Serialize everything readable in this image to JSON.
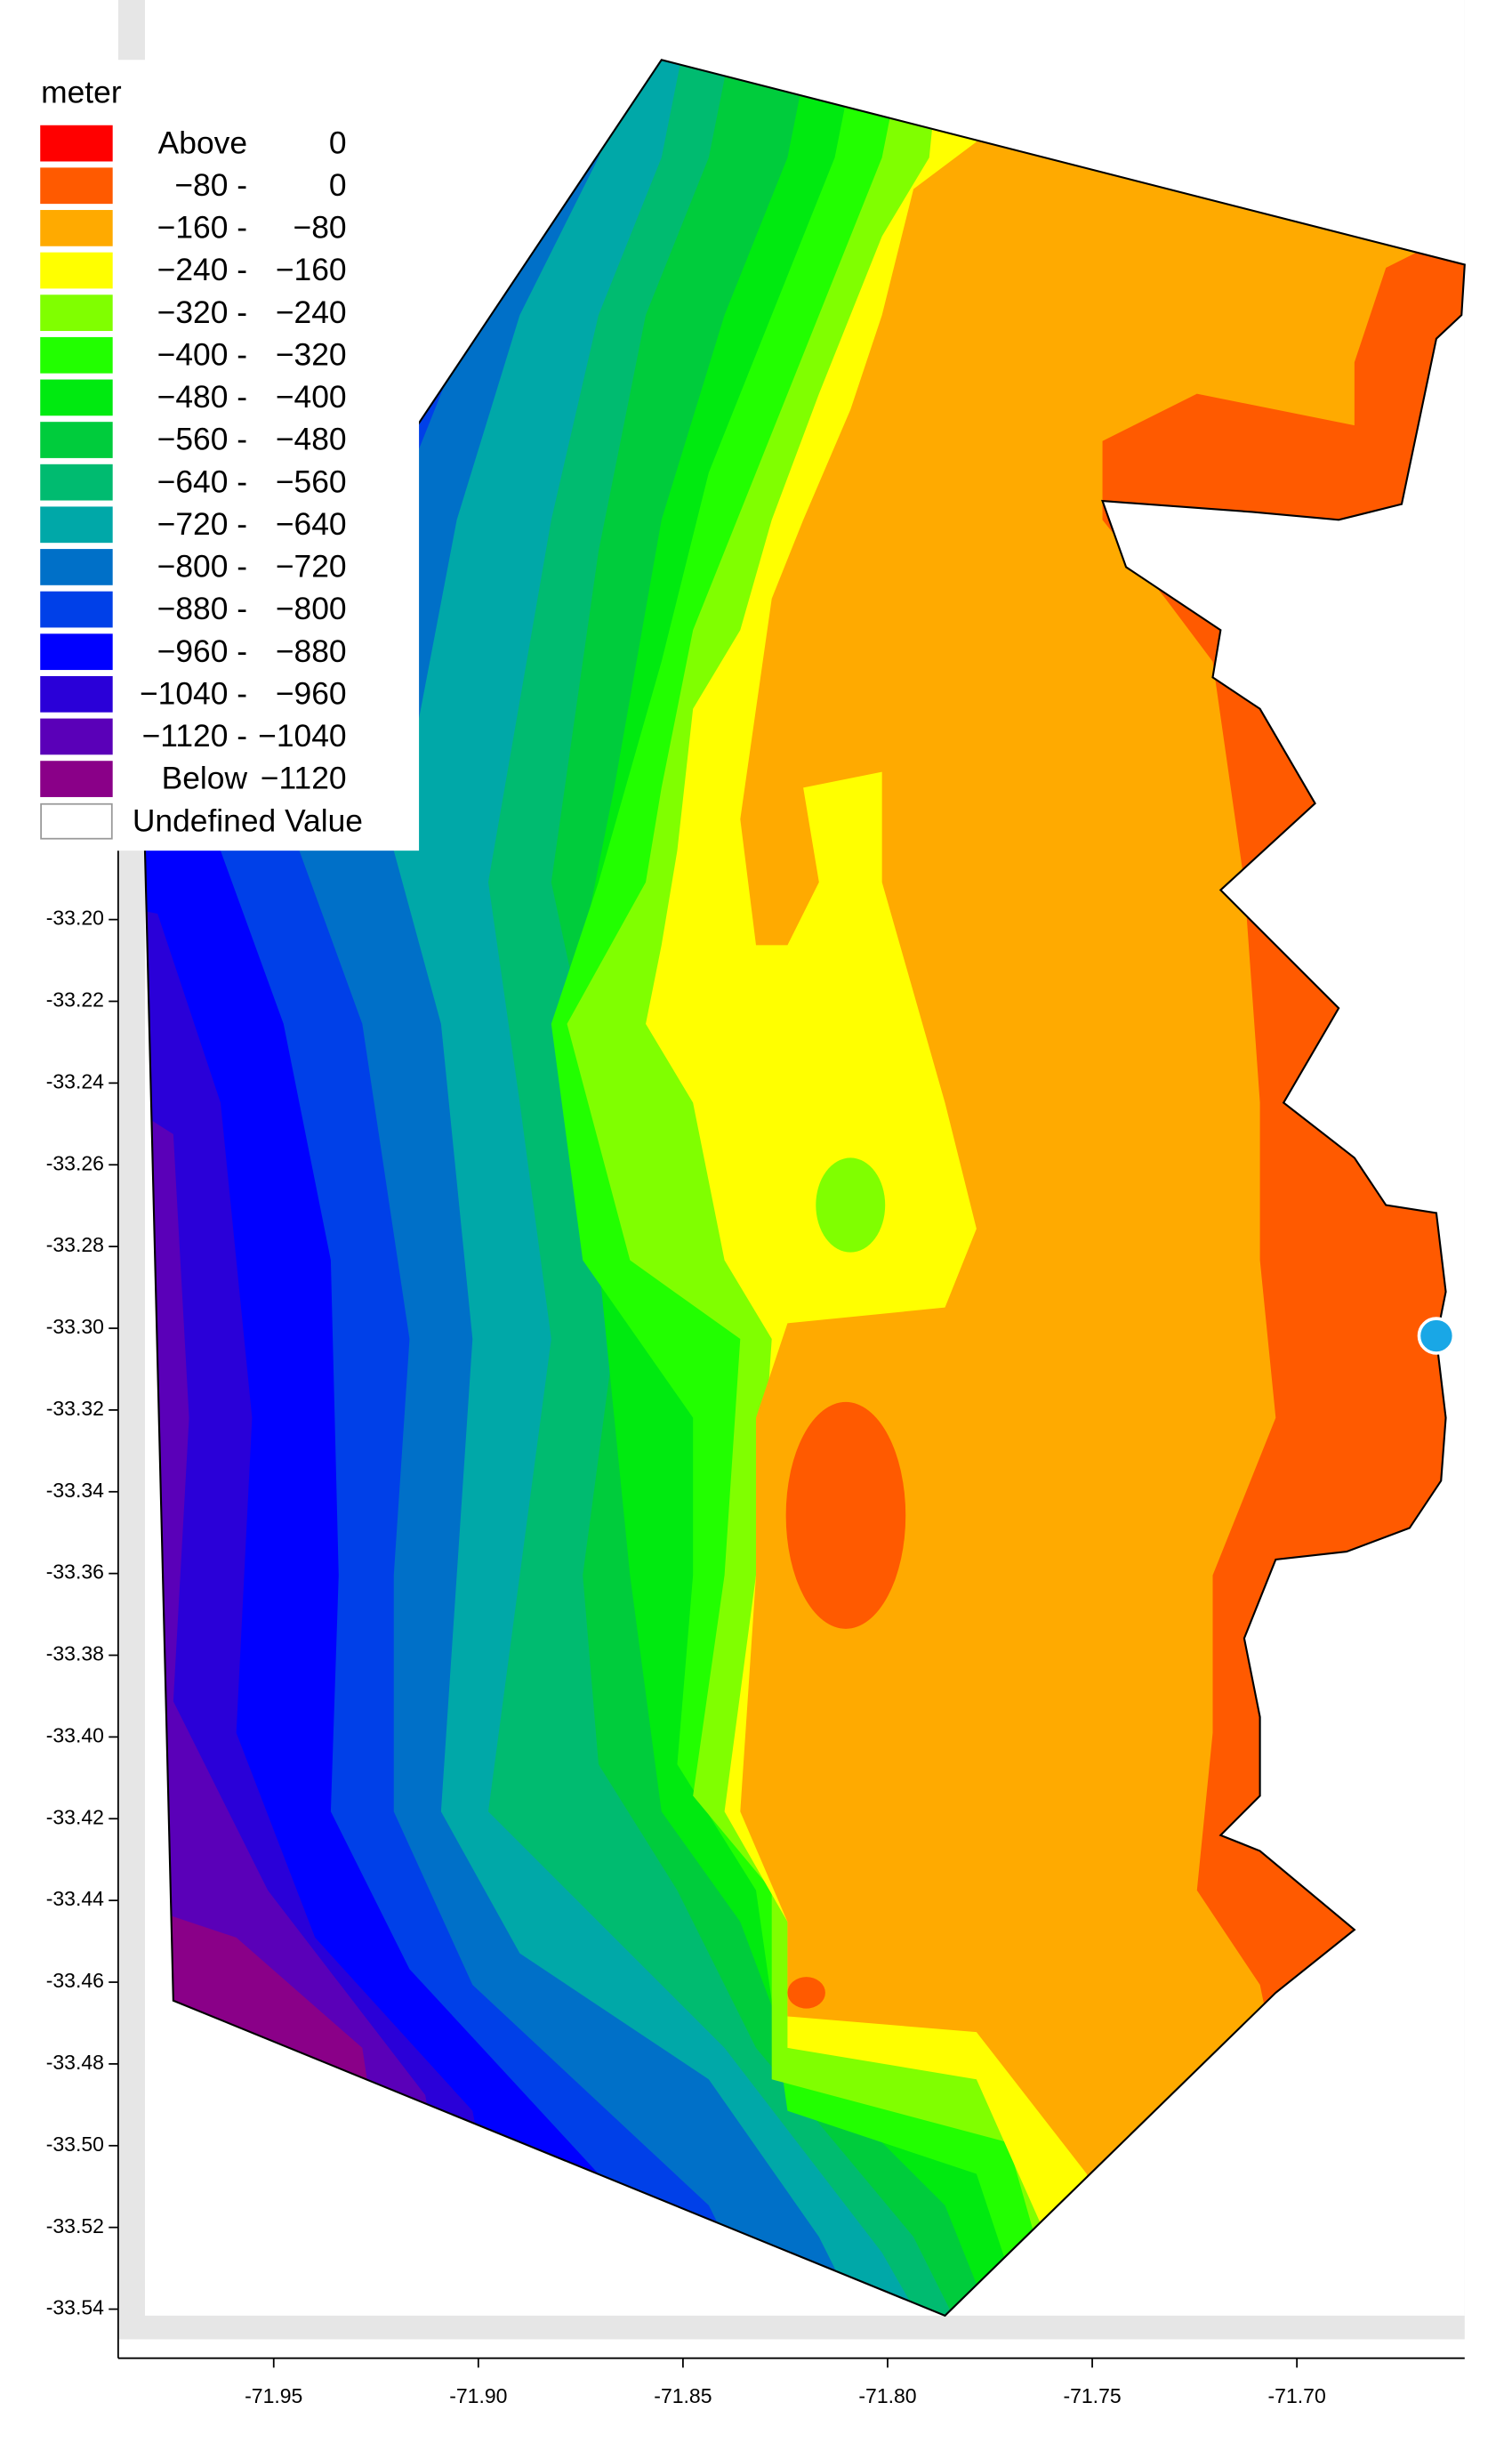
{
  "chart_data": {
    "type": "contour-map",
    "legend": {
      "title": "meter",
      "items": [
        {
          "from": "Above",
          "to": "0",
          "color": "#ff0000"
        },
        {
          "from": "−80 -",
          "to": "0",
          "color": "#ff5a00"
        },
        {
          "from": "−160 -",
          "to": "−80",
          "color": "#ffaa00"
        },
        {
          "from": "−240 -",
          "to": "−160",
          "color": "#ffff00"
        },
        {
          "from": "−320 -",
          "to": "−240",
          "color": "#80ff00"
        },
        {
          "from": "−400 -",
          "to": "−320",
          "color": "#22ff00"
        },
        {
          "from": "−480 -",
          "to": "−400",
          "color": "#00ea10"
        },
        {
          "from": "−560 -",
          "to": "−480",
          "color": "#00cc3c"
        },
        {
          "from": "−640 -",
          "to": "−560",
          "color": "#00bb70"
        },
        {
          "from": "−720 -",
          "to": "−640",
          "color": "#00a8a8"
        },
        {
          "from": "−800 -",
          "to": "−720",
          "color": "#0070c8"
        },
        {
          "from": "−880 -",
          "to": "−800",
          "color": "#0040e8"
        },
        {
          "from": "−960 -",
          "to": "−880",
          "color": "#0000ff"
        },
        {
          "from": "−1040 -",
          "to": "−960",
          "color": "#2a00d8"
        },
        {
          "from": "−1120 -",
          "to": "−1040",
          "color": "#5a00b8"
        },
        {
          "from": "Below",
          "to": "−1120",
          "color": "#8a0088"
        },
        {
          "label": "Undefined Value",
          "color": "#ffffff"
        }
      ]
    },
    "xlim": [
      -71.988,
      -71.659
    ],
    "ylim": [
      -33.552,
      -32.975
    ],
    "xticks": [
      -71.95,
      {
        "value": -71.9,
        "label": "-71.90"
      },
      -71.85,
      {
        "value": -71.8,
        "label": "-71.80"
      },
      -71.75,
      {
        "value": -71.7,
        "label": "-71.70"
      }
    ],
    "yticks": [
      {
        "value": -33.2,
        "label": "-33.20"
      },
      -33.22,
      -33.24,
      -33.26,
      -33.28,
      {
        "value": -33.3,
        "label": "-33.30"
      },
      -33.32,
      -33.34,
      -33.36,
      -33.38,
      {
        "value": -33.4,
        "label": "-33.40"
      },
      -33.42,
      -33.44,
      -33.46,
      -33.48,
      {
        "value": -33.5,
        "label": "-33.50"
      },
      -33.52,
      -33.54
    ]
  }
}
